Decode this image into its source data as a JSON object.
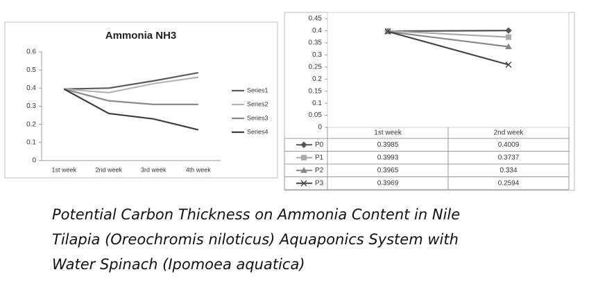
{
  "chart_data": [
    {
      "type": "line",
      "title": "Ammonia NH3",
      "categories": [
        "1st week",
        "2nd week",
        "3rd week",
        "4th week"
      ],
      "series": [
        {
          "name": "Series1",
          "color": "#5a5a5a",
          "values": [
            0.395,
            0.4,
            0.44,
            0.485
          ]
        },
        {
          "name": "Series2",
          "color": "#b4b4b4",
          "values": [
            0.395,
            0.375,
            0.425,
            0.46
          ]
        },
        {
          "name": "Series3",
          "color": "#8a8a8a",
          "values": [
            0.395,
            0.33,
            0.31,
            0.31
          ]
        },
        {
          "name": "Series4",
          "color": "#3c3c3c",
          "values": [
            0.395,
            0.26,
            0.23,
            0.17
          ]
        }
      ],
      "ylim": [
        0,
        0.6
      ],
      "yticks": [
        0,
        0.1,
        0.2,
        0.3,
        0.4,
        0.5,
        0.6
      ],
      "grid": false,
      "legend": "right"
    },
    {
      "type": "line",
      "categories": [
        "1st week",
        "2nd week"
      ],
      "series": [
        {
          "name": "P0",
          "color": "#555555",
          "marker": "diamond",
          "values": [
            0.3985,
            0.4009
          ]
        },
        {
          "name": "P1",
          "color": "#aaaaaa",
          "marker": "square",
          "values": [
            0.3993,
            0.3737
          ]
        },
        {
          "name": "P2",
          "color": "#888888",
          "marker": "triangle",
          "values": [
            0.3965,
            0.334
          ]
        },
        {
          "name": "P3",
          "color": "#444444",
          "marker": "x",
          "values": [
            0.3969,
            0.2594
          ]
        }
      ],
      "ylim": [
        0,
        0.45
      ],
      "yticks": [
        0,
        0.05,
        0.1,
        0.15,
        0.2,
        0.25,
        0.3,
        0.35,
        0.4,
        0.45
      ],
      "grid": false,
      "legend": "table"
    }
  ],
  "caption": [
    "Potential Carbon Thickness on Ammonia Content in Nile",
    "Tilapia (Oreochromis niloticus) Aquaponics System with",
    "Water Spinach (Ipomoea aquatica)"
  ]
}
